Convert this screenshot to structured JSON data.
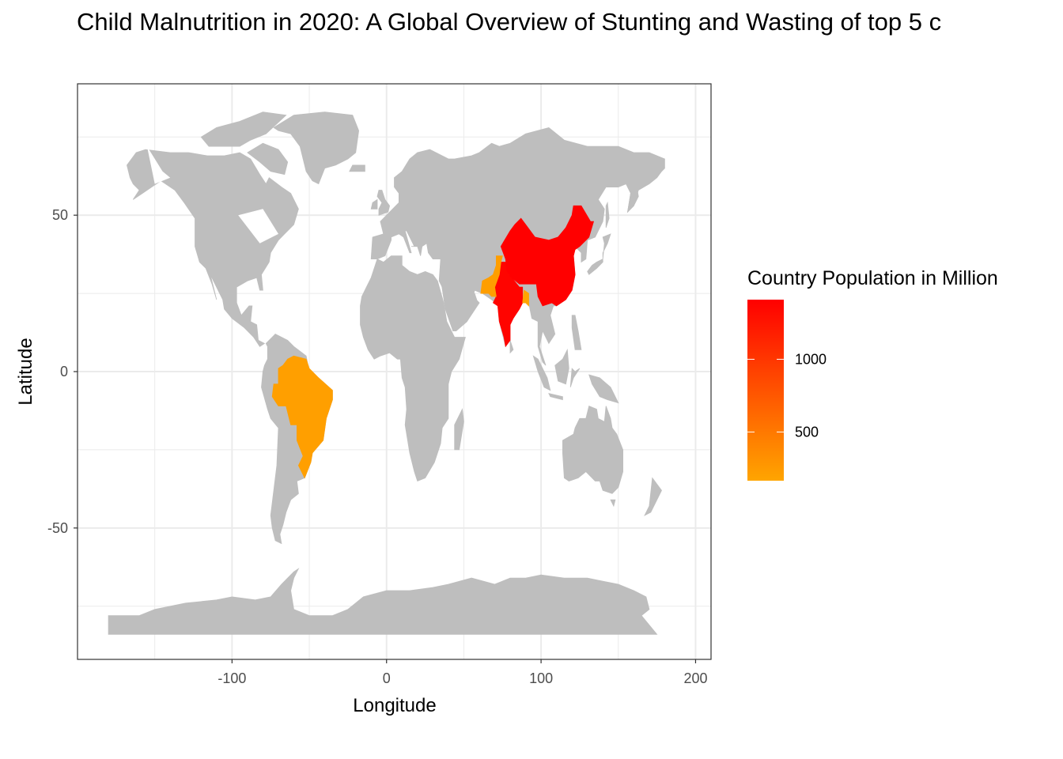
{
  "title": "Child Malnutrition in 2020: A Global Overview of Stunting and Wasting of top 5 c",
  "map": {
    "xlabel": "Longitude",
    "ylabel": "Latitude",
    "x_ticks": [
      "-100",
      "0",
      "100",
      "200"
    ],
    "y_ticks": [
      "50",
      "0",
      "-50"
    ],
    "xlim": [
      -200,
      210
    ],
    "ylim": [
      -92,
      92
    ],
    "land_color": "#bebebe",
    "grid": "on",
    "highlighted_countries": [
      {
        "country": "India",
        "population_million": 1380
      },
      {
        "country": "China",
        "population_million": 1410
      },
      {
        "country": "Pakistan",
        "population_million": 220
      },
      {
        "country": "Brazil",
        "population_million": 213
      },
      {
        "country": "Bangladesh",
        "population_million": 165
      }
    ]
  },
  "legend": {
    "title": "Country Population in Million",
    "labels": [
      "1000",
      "500"
    ],
    "scale_min": 165,
    "scale_max": 1410,
    "low_color": "#ffa500",
    "high_color": "#ff0000",
    "placement": "right"
  }
}
